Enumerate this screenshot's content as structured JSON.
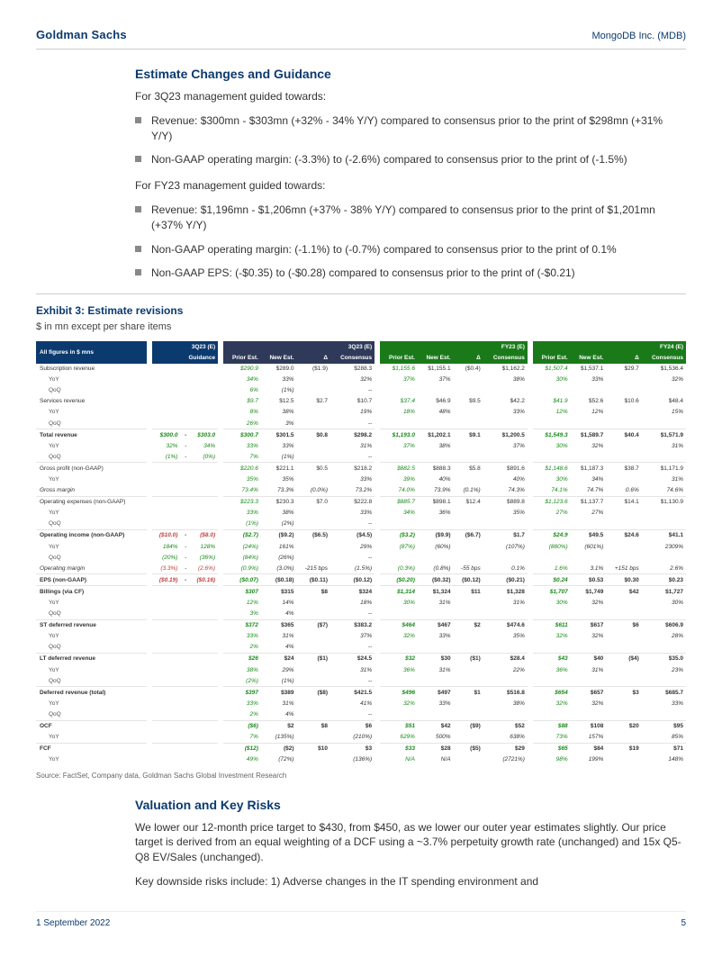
{
  "header": {
    "brand": "Goldman Sachs",
    "ticker": "MongoDB Inc. (MDB)"
  },
  "sec1": {
    "title": "Estimate Changes and Guidance",
    "intro1": "For 3Q23 management guided towards:",
    "b1": "Revenue: $300mn - $303mn (+32% - 34% Y/Y) compared to consensus prior to the print of $298mn (+31% Y/Y)",
    "b2": "Non-GAAP operating margin: (-3.3%) to (-2.6%) compared to consensus prior to the print of (-1.5%)",
    "intro2": "For FY23 management guided towards:",
    "b3": "Revenue: $1,196mn - $1,206mn (+37% - 38% Y/Y) compared to consensus prior to the print of $1,201mn (+37% Y/Y)",
    "b4": "Non-GAAP operating margin: (-1.1%) to (-0.7%) compared to consensus prior to the print of 0.1%",
    "b5": "Non-GAAP EPS: (-$0.35) to (-$0.28) compared to consensus prior to the print of (-$0.21)"
  },
  "exhibit": {
    "title": "Exhibit 3: Estimate revisions",
    "sub": "$ in mn except per share items",
    "src": "Source: FactSet, Company data, Goldman Sachs Global Investment Research"
  },
  "thdr": {
    "corner": "All figures in $ mns",
    "g1": "3Q23 (E)",
    "g1s": "Guidance",
    "g2": "3Q23 (E)",
    "g3": "FY23 (E)",
    "g4": "FY24 (E)",
    "c_prior": "Prior Est.",
    "c_new": "New Est.",
    "c_delta": "Δ",
    "c_cons": "Consensus"
  },
  "rows": {
    "sub": {
      "l": "Subscription revenue",
      "p3": "$290.9",
      "n3": "$289.0",
      "d3": "($1.9)",
      "c3": "$288.3",
      "p23": "$1,155.6",
      "n23": "$1,155.1",
      "d23": "($0.4)",
      "c23": "$1,162.2",
      "p24": "$1,507.4",
      "n24": "$1,537.1",
      "d24": "$29.7",
      "c24": "$1,536.4"
    },
    "sub_y": {
      "l": "YoY",
      "p3": "34%",
      "n3": "33%",
      "c3": "32%",
      "p23": "37%",
      "n23": "37%",
      "c23": "38%",
      "p24": "30%",
      "n24": "33%",
      "c24": "32%"
    },
    "sub_q": {
      "l": "QoQ",
      "p3": "6%",
      "n3": "(1%)",
      "c3": "--"
    },
    "svc": {
      "l": "Services revenue",
      "p3": "$9.7",
      "n3": "$12.5",
      "d3": "$2.7",
      "c3": "$10.7",
      "p23": "$37.4",
      "n23": "$46.9",
      "d23": "$9.5",
      "c23": "$42.2",
      "p24": "$41.9",
      "n24": "$52.6",
      "d24": "$10.6",
      "c24": "$48.4"
    },
    "svc_y": {
      "l": "YoY",
      "p3": "8%",
      "n3": "38%",
      "c3": "19%",
      "p23": "18%",
      "n23": "48%",
      "c23": "33%",
      "p24": "12%",
      "n24": "12%",
      "c24": "15%"
    },
    "svc_q": {
      "l": "QoQ",
      "p3": "26%",
      "n3": "3%",
      "c3": "--"
    },
    "tot": {
      "l": "Total revenue",
      "gl": "$300.0",
      "gd": "-",
      "gr": "$303.0",
      "p3": "$300.7",
      "n3": "$301.5",
      "d3": "$0.8",
      "c3": "$298.2",
      "p23": "$1,193.0",
      "n23": "$1,202.1",
      "d23": "$9.1",
      "c23": "$1,200.5",
      "p24": "$1,549.3",
      "n24": "$1,589.7",
      "d24": "$40.4",
      "c24": "$1,571.9"
    },
    "tot_y": {
      "l": "YoY",
      "gl": "32%",
      "gd": "-",
      "gr": "34%",
      "p3": "33%",
      "n3": "33%",
      "c3": "31%",
      "p23": "37%",
      "n23": "38%",
      "c23": "37%",
      "p24": "30%",
      "n24": "32%",
      "c24": "31%"
    },
    "tot_q": {
      "l": "QoQ",
      "gl": "(1%)",
      "gd": "-",
      "gr": "(0%)",
      "p3": "7%",
      "n3": "(1%)",
      "c3": "--"
    },
    "gp": {
      "l": "Gross profit (non-GAAP)",
      "p3": "$220.6",
      "n3": "$221.1",
      "d3": "$0.5",
      "c3": "$218.2",
      "p23": "$882.5",
      "n23": "$888.3",
      "d23": "$5.8",
      "c23": "$891.6",
      "p24": "$1,148.6",
      "n24": "$1,187.3",
      "d24": "$38.7",
      "c24": "$1,171.9"
    },
    "gp_y": {
      "l": "YoY",
      "p3": "35%",
      "n3": "35%",
      "c3": "33%",
      "p23": "39%",
      "n23": "40%",
      "c23": "40%",
      "p24": "30%",
      "n24": "34%",
      "c24": "31%"
    },
    "gm": {
      "l": "Gross margin",
      "p3": "73.4%",
      "n3": "73.3%",
      "d3": "(0.0%)",
      "c3": "73.2%",
      "p23": "74.0%",
      "n23": "73.9%",
      "d23": "(0.1%)",
      "c23": "74.3%",
      "p24": "74.1%",
      "n24": "74.7%",
      "d24": "0.6%",
      "c24": "74.6%"
    },
    "oe": {
      "l": "Operating expenses (non-GAAP)",
      "p3": "$223.3",
      "n3": "$230.3",
      "d3": "$7.0",
      "c3": "$222.8",
      "p23": "$885.7",
      "n23": "$898.1",
      "d23": "$12.4",
      "c23": "$889.8",
      "p24": "$1,123.6",
      "n24": "$1,137.7",
      "d24": "$14.1",
      "c24": "$1,130.9"
    },
    "oe_y": {
      "l": "YoY",
      "p3": "33%",
      "n3": "38%",
      "c3": "33%",
      "p23": "34%",
      "n23": "36%",
      "c23": "35%",
      "p24": "27%",
      "n24": "27%"
    },
    "oe_q": {
      "l": "QoQ",
      "p3": "(1%)",
      "n3": "(2%)",
      "c3": "--"
    },
    "oi": {
      "l": "Operating income (non-GAAP)",
      "gl": "($10.0)",
      "gd": "-",
      "gr": "($8.0)",
      "p3": "($2.7)",
      "n3": "($9.2)",
      "d3": "($6.5)",
      "c3": "($4.5)",
      "p23": "($3.2)",
      "n23": "($9.9)",
      "d23": "($6.7)",
      "c23": "$1.7",
      "p24": "$24.9",
      "n24": "$49.5",
      "d24": "$24.6",
      "c24": "$41.1"
    },
    "oi_y": {
      "l": "YoY",
      "gl": "184%",
      "gd": "-",
      "gr": "128%",
      "p3": "(24%)",
      "n3": "161%",
      "c3": "29%",
      "p23": "(87%)",
      "n23": "(60%)",
      "c23": "(107%)",
      "p24": "(880%)",
      "n24": "(601%)",
      "c24": "2309%"
    },
    "oi_q": {
      "l": "QoQ",
      "gl": "(20%)",
      "gd": "-",
      "gr": "(36%)",
      "p3": "(84%)",
      "n3": "(26%)",
      "c3": "--"
    },
    "om": {
      "l": "Operating margin",
      "gl": "(3.3%)",
      "gd": "-",
      "gr": "(2.6%)",
      "p3": "(0.9%)",
      "n3": "(3.0%)",
      "d3": "-215 bps",
      "c3": "(1.5%)",
      "p23": "(0.3%)",
      "n23": "(0.8%)",
      "d23": "-55 bps",
      "c23": "0.1%",
      "p24": "1.6%",
      "n24": "3.1%",
      "d24": "+151 bps",
      "c24": "2.6%"
    },
    "eps": {
      "l": "EPS (non-GAAP)",
      "gl": "($0.19)",
      "gd": "-",
      "gr": "($0.16)",
      "p3": "($0.07)",
      "n3": "($0.18)",
      "d3": "($0.11)",
      "c3": "($0.12)",
      "p23": "($0.20)",
      "n23": "($0.32)",
      "d23": "($0.12)",
      "c23": "($0.21)",
      "p24": "$0.24",
      "n24": "$0.53",
      "d24": "$0.30",
      "c24": "$0.23"
    },
    "bill": {
      "l": "Billings (via CF)",
      "p3": "$307",
      "n3": "$315",
      "d3": "$8",
      "c3": "$324",
      "p23": "$1,314",
      "n23": "$1,324",
      "d23": "$11",
      "c23": "$1,328",
      "p24": "$1,707",
      "n24": "$1,749",
      "d24": "$42",
      "c24": "$1,727"
    },
    "bill_y": {
      "l": "YoY",
      "p3": "12%",
      "n3": "14%",
      "c3": "18%",
      "p23": "30%",
      "n23": "31%",
      "c23": "31%",
      "p24": "30%",
      "n24": "32%",
      "c24": "30%"
    },
    "bill_q": {
      "l": "QoQ",
      "p3": "3%",
      "n3": "4%",
      "c3": "--"
    },
    "std": {
      "l": "ST deferred revenue",
      "p3": "$372",
      "n3": "$365",
      "d3": "($7)",
      "c3": "$383.2",
      "p23": "$464",
      "n23": "$467",
      "d23": "$2",
      "c23": "$474.6",
      "p24": "$611",
      "n24": "$617",
      "d24": "$6",
      "c24": "$606.9"
    },
    "std_y": {
      "l": "YoY",
      "p3": "33%",
      "n3": "31%",
      "c3": "37%",
      "p23": "32%",
      "n23": "33%",
      "c23": "35%",
      "p24": "32%",
      "n24": "32%",
      "c24": "28%"
    },
    "std_q": {
      "l": "QoQ",
      "p3": "2%",
      "n3": "4%",
      "c3": "--"
    },
    "ltd": {
      "l": "LT deferred revenue",
      "p3": "$26",
      "n3": "$24",
      "d3": "($1)",
      "c3": "$24.5",
      "p23": "$32",
      "n23": "$30",
      "d23": "($1)",
      "c23": "$28.4",
      "p24": "$43",
      "n24": "$40",
      "d24": "($4)",
      "c24": "$35.0"
    },
    "ltd_y": {
      "l": "YoY",
      "p3": "38%",
      "n3": "29%",
      "c3": "31%",
      "p23": "36%",
      "n23": "31%",
      "c23": "22%",
      "p24": "36%",
      "n24": "31%",
      "c24": "23%"
    },
    "ltd_q": {
      "l": "QoQ",
      "p3": "(2%)",
      "n3": "(1%)",
      "c3": "--"
    },
    "def": {
      "l": "Deferred revenue (total)",
      "p3": "$397",
      "n3": "$389",
      "d3": "($8)",
      "c3": "$421.5",
      "p23": "$496",
      "n23": "$497",
      "d23": "$1",
      "c23": "$516.8",
      "p24": "$654",
      "n24": "$657",
      "d24": "$3",
      "c24": "$685.7"
    },
    "def_y": {
      "l": "YoY",
      "p3": "33%",
      "n3": "31%",
      "c3": "41%",
      "p23": "32%",
      "n23": "33%",
      "c23": "38%",
      "p24": "32%",
      "n24": "32%",
      "c24": "33%"
    },
    "def_q": {
      "l": "QoQ",
      "p3": "2%",
      "n3": "4%",
      "c3": "--"
    },
    "ocf": {
      "l": "OCF",
      "p3": "($6)",
      "n3": "$2",
      "d3": "$8",
      "c3": "$6",
      "p23": "$51",
      "n23": "$42",
      "d23": "($9)",
      "c23": "$52",
      "p24": "$88",
      "n24": "$108",
      "d24": "$20",
      "c24": "$95"
    },
    "ocf_y": {
      "l": "YoY",
      "p3": "7%",
      "n3": "(135%)",
      "c3": "(210%)",
      "p23": "629%",
      "n23": "500%",
      "c23": "638%",
      "p24": "73%",
      "n24": "157%",
      "c24": "85%"
    },
    "fcf": {
      "l": "FCF",
      "p3": "($12)",
      "n3": "($2)",
      "d3": "$10",
      "c3": "$3",
      "p23": "$33",
      "n23": "$28",
      "d23": "($5)",
      "c23": "$29",
      "p24": "$65",
      "n24": "$84",
      "d24": "$19",
      "c24": "$71"
    },
    "fcf_y": {
      "l": "YoY",
      "p3": "49%",
      "n3": "(72%)",
      "c3": "(136%)",
      "p23": "N/A",
      "n23": "N/A",
      "c23": "(2721%)",
      "p24": "98%",
      "n24": "199%",
      "c24": "148%"
    }
  },
  "sec2": {
    "title": "Valuation and Key Risks",
    "p1": "We lower our 12-month price target to $430, from $450, as we lower our outer year estimates slightly. Our price target is derived from an equal weighting of a DCF using a ~3.7% perpetuity growth rate (unchanged) and 15x Q5-Q8 EV/Sales (unchanged).",
    "p2": "Key downside risks include: 1) Adverse changes in the IT spending environment and"
  },
  "footer": {
    "date": "1 September 2022",
    "page": "5"
  }
}
